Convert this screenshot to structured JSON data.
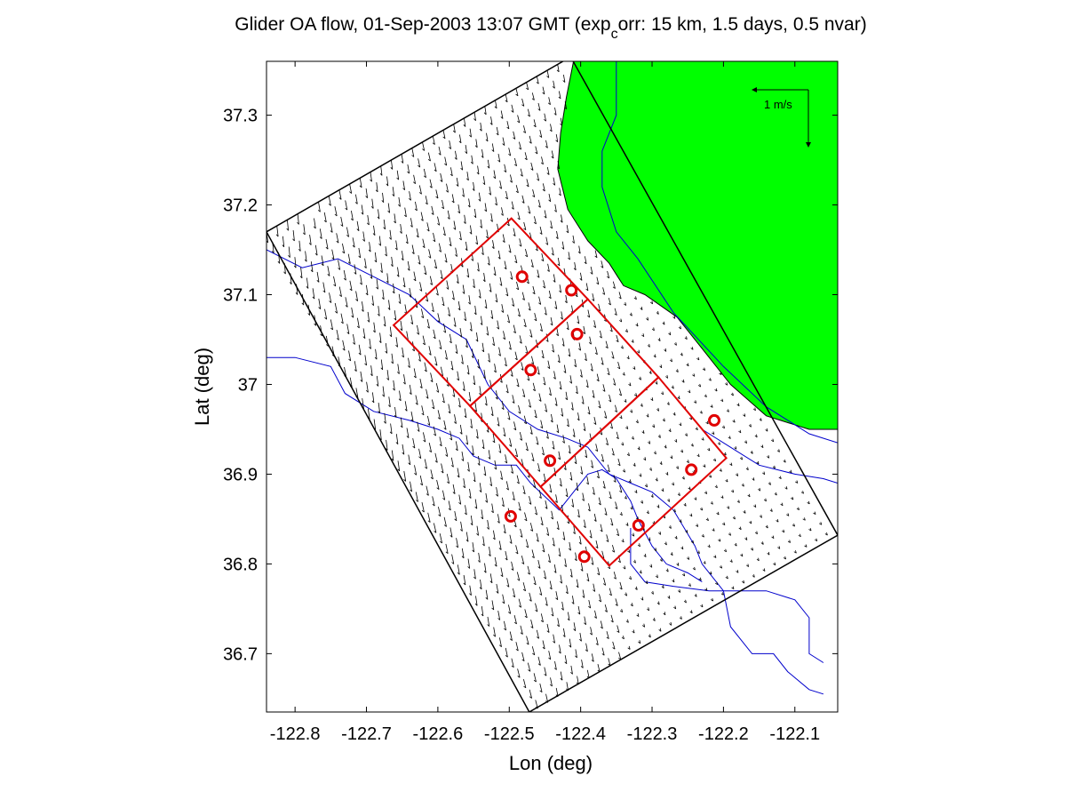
{
  "title": {
    "main": "Glider OA flow, 01-Sep-2003 13:07 GMT (exp",
    "subscript": "c",
    "rest": "orr: 15 km, 1.5 days, 0.5 nvar)"
  },
  "scale_label": "1 m/s",
  "colors": {
    "land": "#00ff00",
    "bathymetry": "#0000cc",
    "survey_box": "#e00000",
    "glider_marker": "#e00000",
    "vectors": "#000000",
    "domain": "#000000"
  },
  "chart_data": {
    "type": "map",
    "xlabel": "Lon (deg)",
    "ylabel": "Lat (deg)",
    "xlim": [
      -122.84,
      -122.04
    ],
    "ylim": [
      36.635,
      37.36
    ],
    "xticks": [
      -122.8,
      -122.7,
      -122.6,
      -122.5,
      -122.4,
      -122.3,
      -122.2,
      -122.1
    ],
    "xtick_labels": [
      "-122.8",
      "-122.7",
      "-122.6",
      "-122.5",
      "-122.4",
      "-122.3",
      "-122.2",
      "-122.1"
    ],
    "yticks": [
      36.7,
      36.8,
      36.9,
      37.0,
      37.1,
      37.2,
      37.3
    ],
    "ytick_labels": [
      "36.7",
      "36.8",
      "36.9",
      "37",
      "37.1",
      "37.2",
      "37.3"
    ],
    "domain_polygon": [
      [
        -122.84,
        37.17
      ],
      [
        -122.414,
        37.365
      ],
      [
        -122.04,
        36.832
      ],
      [
        -122.472,
        36.635
      ]
    ],
    "land_polygon": [
      [
        -122.41,
        37.36
      ],
      [
        -122.04,
        37.36
      ],
      [
        -122.04,
        36.95
      ],
      [
        -122.08,
        36.95
      ],
      [
        -122.14,
        36.965
      ],
      [
        -122.19,
        37.0
      ],
      [
        -122.23,
        37.04
      ],
      [
        -122.265,
        37.075
      ],
      [
        -122.31,
        37.1
      ],
      [
        -122.34,
        37.11
      ],
      [
        -122.348,
        37.12
      ],
      [
        -122.36,
        37.135
      ],
      [
        -122.39,
        37.16
      ],
      [
        -122.418,
        37.195
      ],
      [
        -122.432,
        37.24
      ],
      [
        -122.428,
        37.28
      ],
      [
        -122.42,
        37.32
      ]
    ],
    "survey_boxes": [
      [
        [
          -122.662,
          37.066
        ],
        [
          -122.555,
          36.976
        ],
        [
          -122.39,
          37.095
        ],
        [
          -122.497,
          37.185
        ]
      ],
      [
        [
          -122.555,
          36.976
        ],
        [
          -122.456,
          36.886
        ],
        [
          -122.291,
          37.008
        ],
        [
          -122.39,
          37.095
        ]
      ],
      [
        [
          -122.456,
          36.886
        ],
        [
          -122.36,
          36.798
        ],
        [
          -122.196,
          36.918
        ],
        [
          -122.291,
          37.008
        ]
      ]
    ],
    "glider_positions": [
      {
        "lon": -122.482,
        "lat": 37.12
      },
      {
        "lon": -122.413,
        "lat": 37.105
      },
      {
        "lon": -122.405,
        "lat": 37.056
      },
      {
        "lon": -122.47,
        "lat": 37.016
      },
      {
        "lon": -122.213,
        "lat": 36.96
      },
      {
        "lon": -122.443,
        "lat": 36.915
      },
      {
        "lon": -122.245,
        "lat": 36.905
      },
      {
        "lon": -122.498,
        "lat": 36.853
      },
      {
        "lon": -122.319,
        "lat": 36.843
      },
      {
        "lon": -122.395,
        "lat": 36.808
      }
    ],
    "bathymetry_contours": [
      [
        [
          -122.35,
          37.36
        ],
        [
          -122.35,
          37.3
        ],
        [
          -122.37,
          37.26
        ],
        [
          -122.37,
          37.22
        ],
        [
          -122.35,
          37.17
        ],
        [
          -122.32,
          37.14
        ],
        [
          -122.27,
          37.08
        ],
        [
          -122.2,
          37.02
        ],
        [
          -122.14,
          36.975
        ],
        [
          -122.08,
          36.945
        ],
        [
          -122.04,
          36.935
        ]
      ],
      [
        [
          -122.84,
          37.15
        ],
        [
          -122.79,
          37.13
        ],
        [
          -122.74,
          37.14
        ],
        [
          -122.69,
          37.12
        ],
        [
          -122.64,
          37.1
        ],
        [
          -122.6,
          37.07
        ],
        [
          -122.56,
          37.05
        ],
        [
          -122.53,
          37.0
        ],
        [
          -122.5,
          36.97
        ],
        [
          -122.46,
          36.95
        ],
        [
          -122.42,
          36.94
        ],
        [
          -122.39,
          36.93
        ],
        [
          -122.36,
          36.9
        ],
        [
          -122.33,
          36.89
        ],
        [
          -122.3,
          36.88
        ],
        [
          -122.27,
          36.86
        ],
        [
          -122.24,
          36.82
        ],
        [
          -122.23,
          36.8
        ],
        [
          -122.2,
          36.77
        ],
        [
          -122.19,
          36.73
        ],
        [
          -122.16,
          36.7
        ],
        [
          -122.13,
          36.7
        ],
        [
          -122.11,
          36.68
        ],
        [
          -122.08,
          36.66
        ],
        [
          -122.06,
          36.655
        ]
      ],
      [
        [
          -122.84,
          37.03
        ],
        [
          -122.8,
          37.03
        ],
        [
          -122.75,
          37.02
        ],
        [
          -122.73,
          36.99
        ],
        [
          -122.69,
          36.97
        ],
        [
          -122.64,
          36.96
        ],
        [
          -122.6,
          36.95
        ],
        [
          -122.57,
          36.94
        ],
        [
          -122.55,
          36.92
        ],
        [
          -122.52,
          36.91
        ],
        [
          -122.49,
          36.91
        ],
        [
          -122.47,
          36.89
        ],
        [
          -122.43,
          36.86
        ],
        [
          -122.41,
          36.88
        ],
        [
          -122.39,
          36.9
        ],
        [
          -122.37,
          36.905
        ],
        [
          -122.35,
          36.895
        ],
        [
          -122.33,
          36.87
        ],
        [
          -122.32,
          36.85
        ],
        [
          -122.3,
          36.82
        ],
        [
          -122.28,
          36.8
        ],
        [
          -122.25,
          36.79
        ],
        [
          -122.23,
          36.78
        ]
      ],
      [
        [
          -122.33,
          36.84
        ],
        [
          -122.33,
          36.8
        ],
        [
          -122.31,
          36.78
        ],
        [
          -122.27,
          36.775
        ],
        [
          -122.22,
          36.77
        ],
        [
          -122.18,
          36.77
        ],
        [
          -122.14,
          36.77
        ],
        [
          -122.1,
          36.76
        ],
        [
          -122.08,
          36.74
        ],
        [
          -122.08,
          36.7
        ],
        [
          -122.06,
          36.69
        ]
      ],
      [
        [
          -122.23,
          36.95
        ],
        [
          -122.19,
          36.93
        ],
        [
          -122.15,
          36.91
        ],
        [
          -122.1,
          36.9
        ],
        [
          -122.06,
          36.895
        ],
        [
          -122.04,
          36.89
        ]
      ]
    ],
    "scale_arrow": {
      "lon": -122.08,
      "lat": 37.33,
      "value_ms": 1
    }
  }
}
